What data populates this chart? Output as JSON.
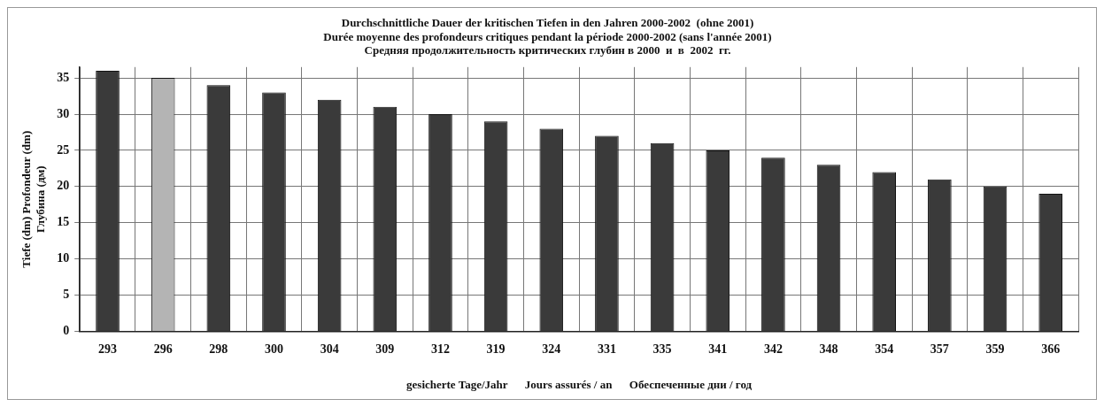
{
  "chart_data": {
    "type": "bar",
    "title": "Durchschnittliche Dauer der kritischen Tiefen in den Jahren 2000-2002  (ohne 2001)\nDurée moyenne des profondeurs critiques pendant la période 2000-2002 (sans l'année 2001)\nСредняя продолжительность критических глубин в 2000  и  в  2002  гг.",
    "xlabel": "gesicherte Tage/Jahr      Jours assurés / an      Обеспеченные дни / год",
    "ylabel": "Tiefe (dm) Profondeur (dm)\nГлубина (дм)",
    "categories": [
      "293",
      "296",
      "298",
      "300",
      "304",
      "309",
      "312",
      "319",
      "324",
      "331",
      "335",
      "341",
      "342",
      "348",
      "354",
      "357",
      "359",
      "366"
    ],
    "values": [
      36,
      35,
      34,
      33,
      32,
      31,
      30,
      29,
      28,
      27,
      26,
      25,
      24,
      23,
      22,
      21,
      20,
      19
    ],
    "colors": [
      "#3a3a3a",
      "#b4b4b4",
      "#3a3a3a",
      "#3a3a3a",
      "#3a3a3a",
      "#3a3a3a",
      "#3a3a3a",
      "#3a3a3a",
      "#3a3a3a",
      "#3a3a3a",
      "#3a3a3a",
      "#3a3a3a",
      "#3a3a3a",
      "#3a3a3a",
      "#3a3a3a",
      "#3a3a3a",
      "#3a3a3a",
      "#3a3a3a"
    ],
    "ylim": [
      0,
      36.5
    ],
    "yticks": [
      0,
      5,
      10,
      15,
      20,
      25,
      30,
      35
    ],
    "grid": true
  }
}
